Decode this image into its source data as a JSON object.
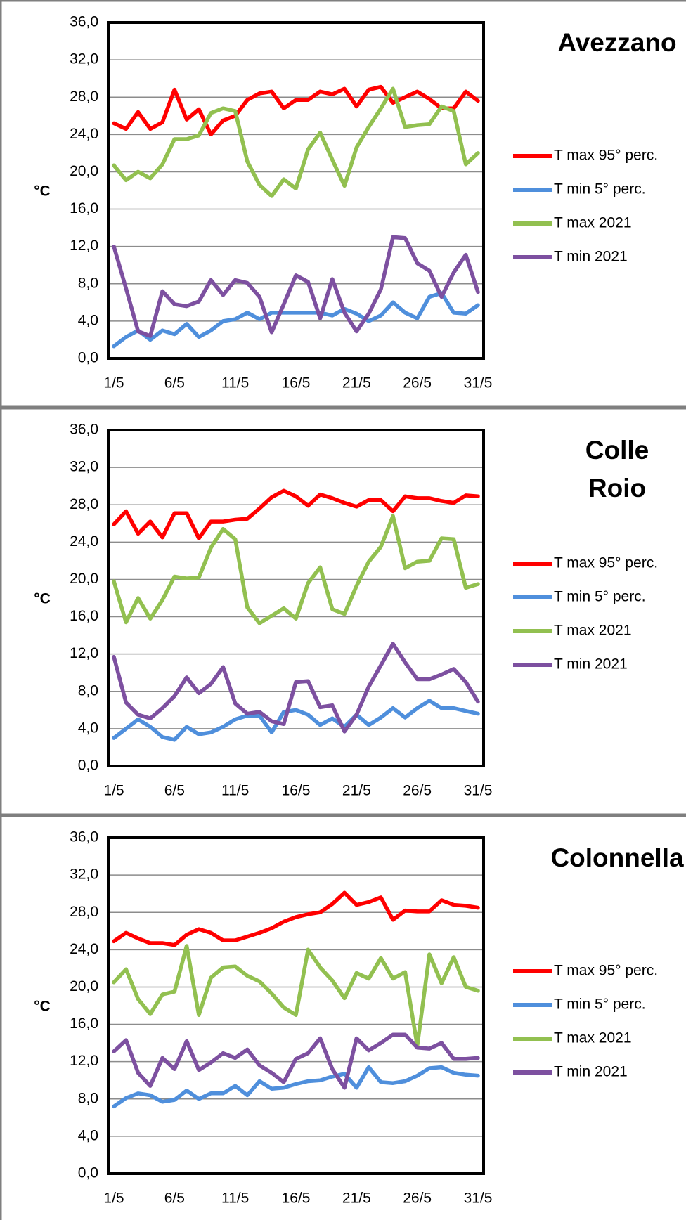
{
  "chart_data": [
    {
      "type": "line",
      "title": "Avezzano",
      "ylabel": "°C",
      "categories": [
        "1/5",
        null,
        null,
        null,
        null,
        "6/5",
        null,
        null,
        null,
        null,
        "11/5",
        null,
        null,
        null,
        null,
        "16/5",
        null,
        null,
        null,
        null,
        "21/5",
        null,
        null,
        null,
        null,
        "26/5",
        null,
        null,
        null,
        null,
        "31/5"
      ],
      "ylim": [
        0,
        36
      ],
      "yticks": [
        {
          "value": 0,
          "label": "0,0"
        },
        {
          "value": 4,
          "label": "4,0"
        },
        {
          "value": 8,
          "label": "8,0"
        },
        {
          "value": 12,
          "label": "12,0"
        },
        {
          "value": 16,
          "label": "16,0"
        },
        {
          "value": 20,
          "label": "20,0"
        },
        {
          "value": 24,
          "label": "24,0"
        },
        {
          "value": 28,
          "label": "28,0"
        },
        {
          "value": 32,
          "label": "32,0"
        },
        {
          "value": 36,
          "label": "36,0"
        }
      ],
      "grid": true,
      "legend": "right",
      "series": [
        {
          "name": "T max 95° perc.",
          "color": "#ff0000",
          "values": [
            25.2,
            24.6,
            26.4,
            24.6,
            25.3,
            28.8,
            25.6,
            26.7,
            24.0,
            25.5,
            26.0,
            27.7,
            28.4,
            28.6,
            26.8,
            27.7,
            27.7,
            28.6,
            28.3,
            28.9,
            27.0,
            28.8,
            29.1,
            27.4,
            28.0,
            28.6,
            27.8,
            26.8,
            26.8,
            28.6,
            27.6
          ]
        },
        {
          "name": "T min 5° perc.",
          "color": "#4f8fdc",
          "values": [
            1.3,
            2.3,
            3.0,
            2.0,
            3.0,
            2.6,
            3.7,
            2.3,
            3.0,
            4.0,
            4.2,
            4.9,
            4.2,
            4.9,
            4.9,
            4.9,
            4.9,
            4.9,
            4.6,
            5.3,
            4.8,
            4.0,
            4.6,
            6.0,
            4.9,
            4.3,
            6.6,
            7.0,
            4.9,
            4.8,
            5.7
          ]
        },
        {
          "name": "T max 2021",
          "color": "#92c050",
          "values": [
            20.7,
            19.1,
            20.0,
            19.3,
            20.8,
            23.5,
            23.5,
            23.9,
            26.3,
            26.8,
            26.5,
            21.1,
            18.6,
            17.4,
            19.2,
            18.2,
            22.4,
            24.2,
            21.3,
            18.5,
            22.6,
            24.8,
            26.8,
            28.9,
            24.8,
            25.0,
            25.1,
            27.0,
            26.5,
            20.8,
            22.0
          ]
        },
        {
          "name": "T min 2021",
          "color": "#7d50a0",
          "values": [
            12.0,
            7.5,
            2.9,
            2.4,
            7.2,
            5.8,
            5.6,
            6.1,
            8.4,
            6.8,
            8.4,
            8.1,
            6.6,
            2.8,
            5.8,
            8.9,
            8.2,
            4.3,
            8.5,
            4.9,
            2.9,
            4.8,
            7.4,
            13.0,
            12.9,
            10.2,
            9.4,
            6.6,
            9.2,
            11.1,
            7.1
          ]
        }
      ]
    },
    {
      "type": "line",
      "title": "Colle Roio",
      "ylabel": "°C",
      "categories": [
        "1/5",
        null,
        null,
        null,
        null,
        "6/5",
        null,
        null,
        null,
        null,
        "11/5",
        null,
        null,
        null,
        null,
        "16/5",
        null,
        null,
        null,
        null,
        "21/5",
        null,
        null,
        null,
        null,
        "26/5",
        null,
        null,
        null,
        null,
        "31/5"
      ],
      "ylim": [
        0,
        36
      ],
      "yticks": [
        {
          "value": 0,
          "label": "0,0"
        },
        {
          "value": 4,
          "label": "4,0"
        },
        {
          "value": 8,
          "label": "8,0"
        },
        {
          "value": 12,
          "label": "12,0"
        },
        {
          "value": 16,
          "label": "16,0"
        },
        {
          "value": 20,
          "label": "20,0"
        },
        {
          "value": 24,
          "label": "24,0"
        },
        {
          "value": 28,
          "label": "28,0"
        },
        {
          "value": 32,
          "label": "32,0"
        },
        {
          "value": 36,
          "label": "36,0"
        }
      ],
      "grid": true,
      "legend": "right",
      "series": [
        {
          "name": "T max 95° perc.",
          "color": "#ff0000",
          "values": [
            25.9,
            27.3,
            24.9,
            26.2,
            24.5,
            27.1,
            27.1,
            24.4,
            26.2,
            26.2,
            26.4,
            26.5,
            27.6,
            28.8,
            29.5,
            28.9,
            27.9,
            29.1,
            28.7,
            28.2,
            27.8,
            28.5,
            28.5,
            27.3,
            28.9,
            28.7,
            28.7,
            28.4,
            28.2,
            29.0,
            28.9
          ]
        },
        {
          "name": "T min 5° perc.",
          "color": "#4f8fdc",
          "values": [
            3.0,
            4.0,
            5.0,
            4.2,
            3.1,
            2.8,
            4.2,
            3.4,
            3.6,
            4.2,
            5.0,
            5.4,
            5.4,
            3.6,
            5.8,
            6.0,
            5.5,
            4.4,
            5.1,
            4.2,
            5.5,
            4.4,
            5.2,
            6.2,
            5.2,
            6.2,
            7.0,
            6.2,
            6.2,
            5.9,
            5.6
          ]
        },
        {
          "name": "T max 2021",
          "color": "#92c050",
          "values": [
            19.8,
            15.4,
            18.0,
            15.8,
            17.8,
            20.3,
            20.1,
            20.2,
            23.4,
            25.4,
            24.3,
            17.0,
            15.3,
            16.1,
            16.9,
            15.8,
            19.6,
            21.3,
            16.8,
            16.3,
            19.3,
            21.9,
            23.5,
            26.8,
            21.2,
            21.9,
            22.0,
            24.4,
            24.3,
            19.1,
            19.5
          ]
        },
        {
          "name": "T min 2021",
          "color": "#7d50a0",
          "values": [
            11.7,
            6.8,
            5.5,
            5.1,
            6.2,
            7.5,
            9.5,
            7.8,
            8.8,
            10.6,
            6.7,
            5.6,
            5.8,
            4.8,
            4.5,
            9.0,
            9.1,
            6.3,
            6.5,
            3.7,
            5.5,
            8.5,
            10.8,
            13.1,
            11.1,
            9.3,
            9.3,
            9.8,
            10.4,
            9.0,
            6.9
          ]
        }
      ]
    },
    {
      "type": "line",
      "title": "Colonnella",
      "ylabel": "°C",
      "categories": [
        "1/5",
        null,
        null,
        null,
        null,
        "6/5",
        null,
        null,
        null,
        null,
        "11/5",
        null,
        null,
        null,
        null,
        "16/5",
        null,
        null,
        null,
        null,
        "21/5",
        null,
        null,
        null,
        null,
        "26/5",
        null,
        null,
        null,
        null,
        "31/5"
      ],
      "ylim": [
        0,
        36
      ],
      "yticks": [
        {
          "value": 0,
          "label": "0,0"
        },
        {
          "value": 4,
          "label": "4,0"
        },
        {
          "value": 8,
          "label": "8,0"
        },
        {
          "value": 12,
          "label": "12,0"
        },
        {
          "value": 16,
          "label": "16,0"
        },
        {
          "value": 20,
          "label": "20,0"
        },
        {
          "value": 24,
          "label": "24,0"
        },
        {
          "value": 28,
          "label": "28,0"
        },
        {
          "value": 32,
          "label": "32,0"
        },
        {
          "value": 36,
          "label": "36,0"
        }
      ],
      "grid": true,
      "legend": "right",
      "series": [
        {
          "name": "T max 95° perc.",
          "color": "#ff0000",
          "values": [
            24.9,
            25.8,
            25.2,
            24.7,
            24.7,
            24.5,
            25.6,
            26.2,
            25.8,
            25.0,
            25.0,
            25.4,
            25.8,
            26.3,
            27.0,
            27.5,
            27.8,
            28.0,
            28.9,
            30.1,
            28.8,
            29.1,
            29.6,
            27.2,
            28.2,
            28.1,
            28.1,
            29.3,
            28.8,
            28.7,
            28.5
          ]
        },
        {
          "name": "T min 5° perc.",
          "color": "#4f8fdc",
          "values": [
            7.2,
            8.1,
            8.6,
            8.4,
            7.7,
            7.9,
            8.9,
            8.0,
            8.6,
            8.6,
            9.4,
            8.4,
            9.9,
            9.1,
            9.2,
            9.6,
            9.9,
            10.0,
            10.4,
            10.7,
            9.2,
            11.4,
            9.8,
            9.7,
            9.9,
            10.5,
            11.3,
            11.4,
            10.8,
            10.6,
            10.5
          ]
        },
        {
          "name": "T max 2021",
          "color": "#92c050",
          "values": [
            20.5,
            21.9,
            18.7,
            17.1,
            19.2,
            19.5,
            24.4,
            17.0,
            21.0,
            22.1,
            22.2,
            21.2,
            20.6,
            19.3,
            17.8,
            17.0,
            24.0,
            22.1,
            20.7,
            18.8,
            21.5,
            20.9,
            23.1,
            20.9,
            21.6,
            13.7,
            23.5,
            20.4,
            23.2,
            20.0,
            19.6
          ]
        },
        {
          "name": "T min 2021",
          "color": "#7d50a0",
          "values": [
            13.1,
            14.3,
            10.8,
            9.4,
            12.4,
            11.2,
            14.2,
            11.1,
            11.9,
            12.9,
            12.4,
            13.3,
            11.6,
            10.8,
            9.8,
            12.3,
            12.9,
            14.5,
            11.2,
            9.2,
            14.5,
            13.2,
            14.0,
            14.9,
            14.9,
            13.5,
            13.4,
            14.0,
            12.3,
            12.3,
            12.4
          ]
        }
      ]
    }
  ]
}
